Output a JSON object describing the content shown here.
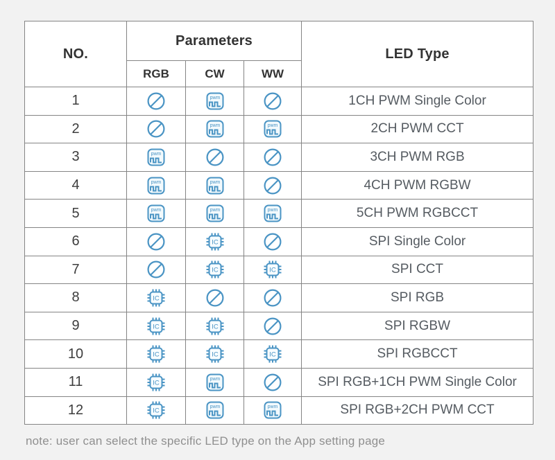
{
  "colors": {
    "icon_blue": "#4a94c4",
    "table_border": "#848484",
    "header_text": "#333333",
    "body_text": "#3d3d3d",
    "led_text": "#555b61",
    "note_text": "#8f8f8f",
    "page_bg": "#f2f2f2",
    "cell_bg": "#ffffff"
  },
  "table": {
    "headers": {
      "no": "NO.",
      "parameters": "Parameters",
      "rgb": "RGB",
      "cw": "CW",
      "ww": "WW",
      "led_type": "LED Type"
    },
    "icons": {
      "pwm": {
        "name": "pwm-icon",
        "label": "pwm"
      },
      "ic": {
        "name": "ic-icon",
        "label": "IC"
      },
      "none": {
        "name": "not-supported-icon",
        "label": ""
      }
    },
    "rows": [
      {
        "no": "1",
        "rgb": "none",
        "cw": "pwm",
        "ww": "none",
        "led_type": "1CH PWM Single Color"
      },
      {
        "no": "2",
        "rgb": "none",
        "cw": "pwm",
        "ww": "pwm",
        "led_type": "2CH PWM CCT"
      },
      {
        "no": "3",
        "rgb": "pwm",
        "cw": "none",
        "ww": "none",
        "led_type": "3CH PWM RGB"
      },
      {
        "no": "4",
        "rgb": "pwm",
        "cw": "pwm",
        "ww": "none",
        "led_type": "4CH PWM RGBW"
      },
      {
        "no": "5",
        "rgb": "pwm",
        "cw": "pwm",
        "ww": "pwm",
        "led_type": "5CH PWM RGBCCT"
      },
      {
        "no": "6",
        "rgb": "none",
        "cw": "ic",
        "ww": "none",
        "led_type": "SPI Single Color"
      },
      {
        "no": "7",
        "rgb": "none",
        "cw": "ic",
        "ww": "ic",
        "led_type": "SPI CCT"
      },
      {
        "no": "8",
        "rgb": "ic",
        "cw": "none",
        "ww": "none",
        "led_type": "SPI RGB"
      },
      {
        "no": "9",
        "rgb": "ic",
        "cw": "ic",
        "ww": "none",
        "led_type": "SPI RGBW"
      },
      {
        "no": "10",
        "rgb": "ic",
        "cw": "ic",
        "ww": "ic",
        "led_type": "SPI RGBCCT"
      },
      {
        "no": "11",
        "rgb": "ic",
        "cw": "pwm",
        "ww": "none",
        "led_type": "SPI RGB+1CH PWM Single Color"
      },
      {
        "no": "12",
        "rgb": "ic",
        "cw": "pwm",
        "ww": "pwm",
        "led_type": "SPI RGB+2CH PWM CCT"
      }
    ]
  },
  "note": "note: user can select the specific LED type on the App setting page"
}
